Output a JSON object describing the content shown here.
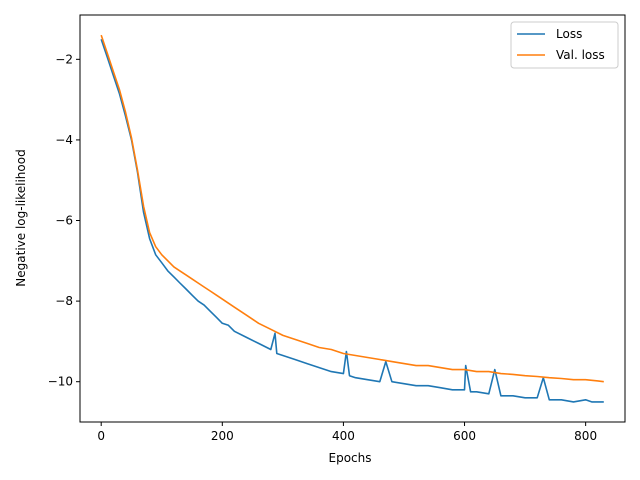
{
  "chart_data": {
    "type": "line",
    "title": "",
    "xlabel": "Epochs",
    "ylabel": "Negative log-likelihood",
    "xlim": [
      -35,
      865
    ],
    "ylim": [
      -11.0,
      -0.9
    ],
    "xticks": [
      0,
      200,
      400,
      600,
      800
    ],
    "yticks": [
      -10,
      -8,
      -6,
      -4,
      -2
    ],
    "xtick_labels": [
      "0",
      "200",
      "400",
      "600",
      "800"
    ],
    "ytick_labels": [
      "−10",
      "−8",
      "−6",
      "−4",
      "−2"
    ],
    "grid": false,
    "legend_position": "top-right",
    "series": [
      {
        "name": "Loss",
        "color": "#1f77b4",
        "x": [
          0,
          10,
          20,
          30,
          40,
          50,
          60,
          70,
          80,
          90,
          100,
          110,
          120,
          130,
          140,
          150,
          160,
          170,
          180,
          190,
          200,
          210,
          220,
          240,
          260,
          280,
          287,
          290,
          300,
          320,
          340,
          360,
          380,
          400,
          405,
          410,
          420,
          440,
          460,
          470,
          480,
          500,
          520,
          540,
          560,
          580,
          600,
          602,
          610,
          620,
          640,
          650,
          660,
          680,
          700,
          720,
          730,
          740,
          760,
          780,
          800,
          810,
          820,
          830
        ],
        "values": [
          -1.5,
          -1.95,
          -2.4,
          -2.85,
          -3.4,
          -4.0,
          -4.8,
          -5.8,
          -6.45,
          -6.85,
          -7.05,
          -7.25,
          -7.4,
          -7.55,
          -7.7,
          -7.85,
          -8.0,
          -8.1,
          -8.25,
          -8.4,
          -8.55,
          -8.6,
          -8.75,
          -8.9,
          -9.05,
          -9.2,
          -8.8,
          -9.3,
          -9.35,
          -9.45,
          -9.55,
          -9.65,
          -9.75,
          -9.8,
          -9.25,
          -9.85,
          -9.9,
          -9.95,
          -10.0,
          -9.5,
          -10.0,
          -10.05,
          -10.1,
          -10.1,
          -10.15,
          -10.2,
          -10.2,
          -9.6,
          -10.25,
          -10.25,
          -10.3,
          -9.7,
          -10.35,
          -10.35,
          -10.4,
          -10.4,
          -9.9,
          -10.45,
          -10.45,
          -10.5,
          -10.45,
          -10.5,
          -10.5,
          -10.5
        ]
      },
      {
        "name": "Val. loss",
        "color": "#ff7f0e",
        "x": [
          0,
          10,
          20,
          30,
          40,
          50,
          60,
          70,
          80,
          90,
          100,
          110,
          120,
          130,
          140,
          150,
          160,
          170,
          180,
          190,
          200,
          220,
          240,
          260,
          280,
          300,
          320,
          340,
          360,
          380,
          400,
          420,
          440,
          460,
          480,
          500,
          520,
          540,
          560,
          580,
          600,
          620,
          640,
          660,
          680,
          700,
          720,
          740,
          760,
          780,
          800,
          820,
          830
        ],
        "values": [
          -1.4,
          -1.85,
          -2.3,
          -2.75,
          -3.3,
          -3.95,
          -4.75,
          -5.65,
          -6.3,
          -6.65,
          -6.85,
          -7.0,
          -7.15,
          -7.25,
          -7.35,
          -7.45,
          -7.55,
          -7.65,
          -7.75,
          -7.85,
          -7.95,
          -8.15,
          -8.35,
          -8.55,
          -8.7,
          -8.85,
          -8.95,
          -9.05,
          -9.15,
          -9.2,
          -9.3,
          -9.35,
          -9.4,
          -9.45,
          -9.5,
          -9.55,
          -9.6,
          -9.6,
          -9.65,
          -9.7,
          -9.7,
          -9.75,
          -9.75,
          -9.8,
          -9.82,
          -9.85,
          -9.87,
          -9.9,
          -9.92,
          -9.95,
          -9.95,
          -9.98,
          -10.0
        ]
      }
    ]
  }
}
